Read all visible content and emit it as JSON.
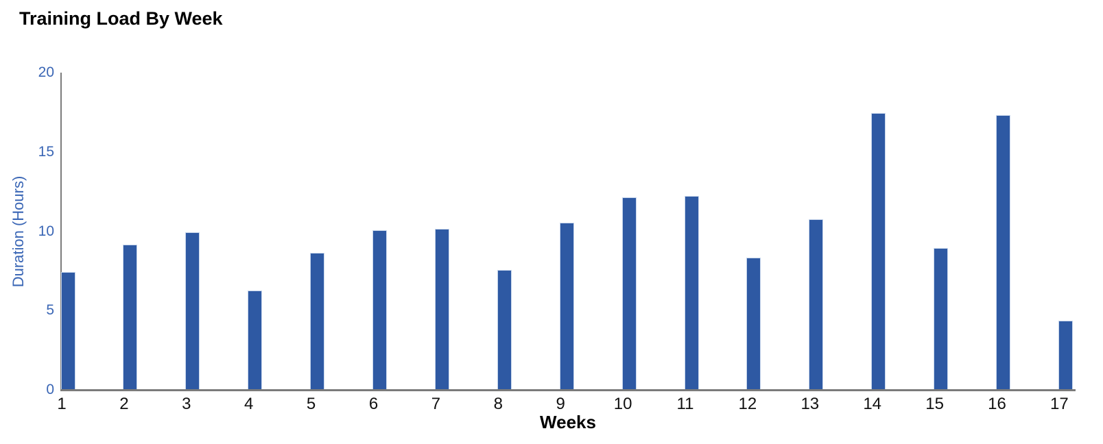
{
  "title": "Training Load By Week",
  "chart_data": {
    "type": "bar",
    "title": "Training Load By Week",
    "xlabel": "Weeks",
    "ylabel": "Duration (Hours)",
    "categories": [
      "1",
      "2",
      "3",
      "4",
      "5",
      "6",
      "7",
      "8",
      "9",
      "10",
      "11",
      "12",
      "13",
      "14",
      "15",
      "16",
      "17"
    ],
    "values": [
      7.4,
      9.1,
      9.9,
      6.2,
      8.6,
      10.0,
      10.1,
      7.5,
      10.5,
      12.1,
      12.2,
      8.3,
      10.7,
      17.4,
      8.9,
      17.3,
      4.3
    ],
    "yticks": [
      0,
      5,
      10,
      15,
      20
    ],
    "ylim": [
      0,
      20
    ],
    "grid": false,
    "legend": false,
    "colors": {
      "bar_fill": "#2e59a3",
      "bar_edge": "#c7d6ec",
      "axis_line": "#7b7b7b",
      "axis_text": "#3a66b5",
      "category_text": "#111111",
      "title_text": "#000000"
    }
  }
}
